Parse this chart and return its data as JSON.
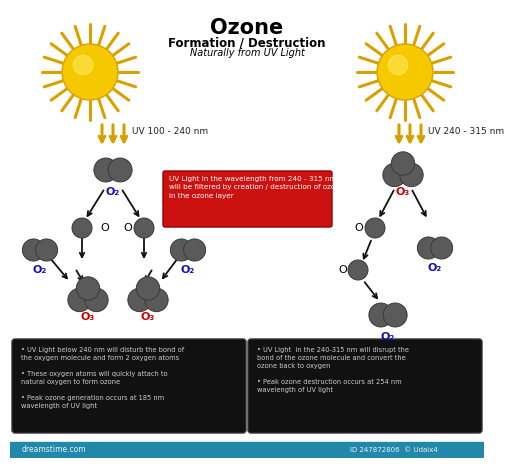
{
  "title": "Ozone",
  "subtitle1": "Formation / Destruction",
  "subtitle2": "Naturally from UV Light",
  "uv_left_label": "UV 100 - 240 nm",
  "uv_right_label": "UV 240 - 315 nm",
  "red_box_text": "UV Light in the wavelength from 240 - 315 nm\nwill be filtered by creation / destruction of ozone\nin the ozone layer",
  "left_box_lines": [
    "UV Light below 240 nm will disturb the bond of\nthe oxygen molecule and form 2 oxygen atoms",
    "These oxygen atoms will quickly attach to\nnatural oxygen to form ozone",
    "Peak ozone generation occurs at 185 nm\nwavelength of UV light"
  ],
  "right_box_lines": [
    "UV Light  in the 240-315 nm will disrupt the\nbond of the ozone molecule and convert the\nozone back to oxygen",
    "Peak ozone destruction occurs at 254 nm\nwavelength of UV light"
  ],
  "mol_color": "#5a5a5a",
  "mol_edge": "#3a3a3a",
  "uv_arrow_color": "#D4A000",
  "label_blue": "#1111BB",
  "label_red": "#CC0000",
  "bg_color": "#ffffff",
  "box_bg": "#111111",
  "box_text_color": "#cccccc",
  "red_box_bg": "#cc1111",
  "red_box_text_color": "#ffffff",
  "bottom_bar_color": "#2288aa",
  "sun_body": "#F5C800",
  "sun_ray": "#DAA000"
}
